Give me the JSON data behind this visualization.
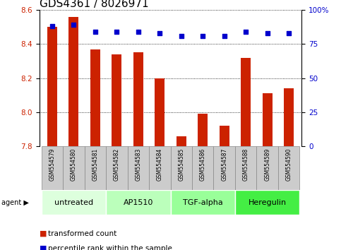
{
  "title": "GDS4361 / 8026971",
  "samples": [
    "GSM554579",
    "GSM554580",
    "GSM554581",
    "GSM554582",
    "GSM554583",
    "GSM554584",
    "GSM554585",
    "GSM554586",
    "GSM554587",
    "GSM554588",
    "GSM554589",
    "GSM554590"
  ],
  "transformed_count": [
    8.5,
    8.56,
    8.37,
    8.34,
    8.35,
    8.2,
    7.86,
    7.99,
    7.92,
    8.32,
    8.11,
    8.14
  ],
  "percentile_rank": [
    88,
    89,
    84,
    84,
    84,
    83,
    81,
    81,
    81,
    84,
    83,
    83
  ],
  "ylim_left": [
    7.8,
    8.6
  ],
  "yticks_left": [
    7.8,
    8.0,
    8.2,
    8.4,
    8.6
  ],
  "yticks_right_labels": [
    "0",
    "25",
    "50",
    "75",
    "100%"
  ],
  "bar_color": "#cc2200",
  "dot_color": "#0000cc",
  "bar_bottom": 7.8,
  "groups": [
    {
      "label": "untreated",
      "start": 0,
      "end": 3,
      "color": "#ddffdd"
    },
    {
      "label": "AP1510",
      "start": 3,
      "end": 6,
      "color": "#bbffbb"
    },
    {
      "label": "TGF-alpha",
      "start": 6,
      "end": 9,
      "color": "#99ff99"
    },
    {
      "label": "Heregulin",
      "start": 9,
      "end": 12,
      "color": "#44ee44"
    }
  ],
  "sample_box_color": "#cccccc",
  "sample_box_edge": "#888888",
  "legend_items": [
    {
      "color": "#cc2200",
      "label": "transformed count"
    },
    {
      "color": "#0000cc",
      "label": "percentile rank within the sample"
    }
  ],
  "title_fontsize": 11,
  "tick_fontsize": 7.5,
  "sample_fontsize": 5.5,
  "group_fontsize": 8,
  "legend_fontsize": 7.5
}
